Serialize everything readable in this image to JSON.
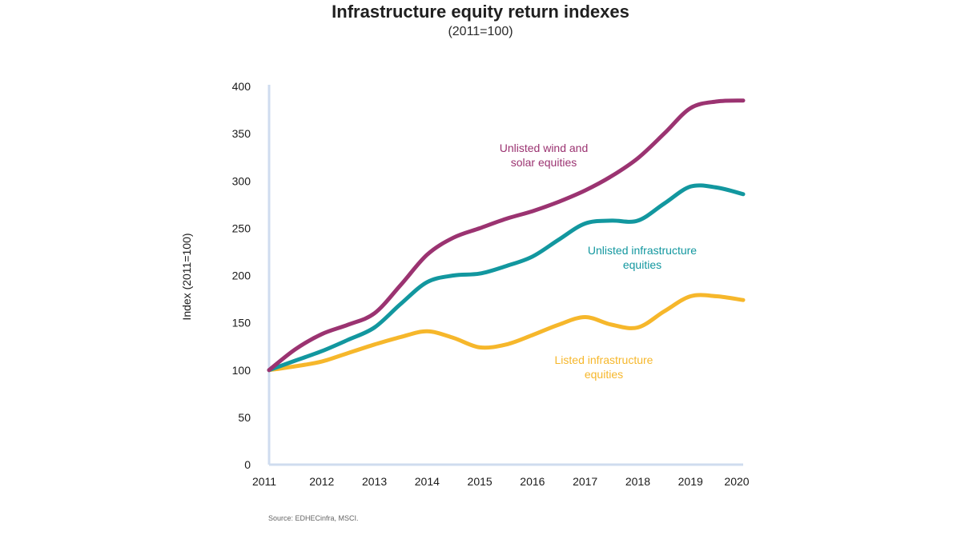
{
  "chart_data": {
    "type": "line",
    "title": "Infrastructure equity return indexes",
    "subtitle": "(2011=100)",
    "ylabel": "Index (2011=100)",
    "xlabel": "",
    "x": [
      2011,
      2012,
      2013,
      2014,
      2015,
      2016,
      2017,
      2018,
      2019,
      2020
    ],
    "x_tick_labels": [
      "2011",
      "2012",
      "2013",
      "2014",
      "2015",
      "2016",
      "2017",
      "2018",
      "2019",
      "2020"
    ],
    "ylim": [
      0,
      400
    ],
    "y_ticks": [
      0,
      50,
      100,
      150,
      200,
      250,
      300,
      350,
      400
    ],
    "y_tick_labels": [
      "0",
      "50",
      "100",
      "150",
      "200",
      "250",
      "300",
      "350",
      "400"
    ],
    "grid": false,
    "series": [
      {
        "name": "Unlisted wind and solar equities",
        "label_lines": [
          "Unlisted wind and",
          "solar equities"
        ],
        "color": "#9b3371",
        "points": [
          [
            2011,
            100
          ],
          [
            2011.5,
            122
          ],
          [
            2012,
            138
          ],
          [
            2012.5,
            148
          ],
          [
            2013,
            160
          ],
          [
            2013.5,
            190
          ],
          [
            2014,
            222
          ],
          [
            2014.5,
            240
          ],
          [
            2015,
            250
          ],
          [
            2015.5,
            260
          ],
          [
            2016,
            268
          ],
          [
            2016.5,
            278
          ],
          [
            2017,
            290
          ],
          [
            2017.5,
            305
          ],
          [
            2018,
            324
          ],
          [
            2018.5,
            350
          ],
          [
            2019,
            377
          ],
          [
            2019.5,
            384
          ],
          [
            2020,
            385
          ]
        ]
      },
      {
        "name": "Unlisted infrastructure equities",
        "label_lines": [
          "Unlisted infrastructure",
          "equities"
        ],
        "color": "#12979f",
        "points": [
          [
            2011,
            100
          ],
          [
            2011.5,
            110
          ],
          [
            2012,
            120
          ],
          [
            2012.5,
            132
          ],
          [
            2013,
            145
          ],
          [
            2013.5,
            170
          ],
          [
            2014,
            193
          ],
          [
            2014.5,
            200
          ],
          [
            2015,
            202
          ],
          [
            2015.5,
            210
          ],
          [
            2016,
            220
          ],
          [
            2016.5,
            238
          ],
          [
            2017,
            255
          ],
          [
            2017.5,
            258
          ],
          [
            2018,
            258
          ],
          [
            2018.5,
            276
          ],
          [
            2019,
            294
          ],
          [
            2019.5,
            293
          ],
          [
            2020,
            286
          ]
        ]
      },
      {
        "name": "Listed infrastructure equities",
        "label_lines": [
          "Listed infrastructure",
          "equities"
        ],
        "color": "#f6b72b",
        "points": [
          [
            2011,
            100
          ],
          [
            2011.5,
            104
          ],
          [
            2012,
            109
          ],
          [
            2012.5,
            118
          ],
          [
            2013,
            127
          ],
          [
            2013.5,
            135
          ],
          [
            2014,
            141
          ],
          [
            2014.5,
            134
          ],
          [
            2015,
            124
          ],
          [
            2015.5,
            127
          ],
          [
            2016,
            137
          ],
          [
            2016.5,
            148
          ],
          [
            2017,
            156
          ],
          [
            2017.5,
            148
          ],
          [
            2018,
            145
          ],
          [
            2018.5,
            162
          ],
          [
            2019,
            178
          ],
          [
            2019.5,
            178
          ],
          [
            2020,
            174
          ]
        ]
      }
    ]
  },
  "source": "Source: EDHECinfra, MSCI."
}
